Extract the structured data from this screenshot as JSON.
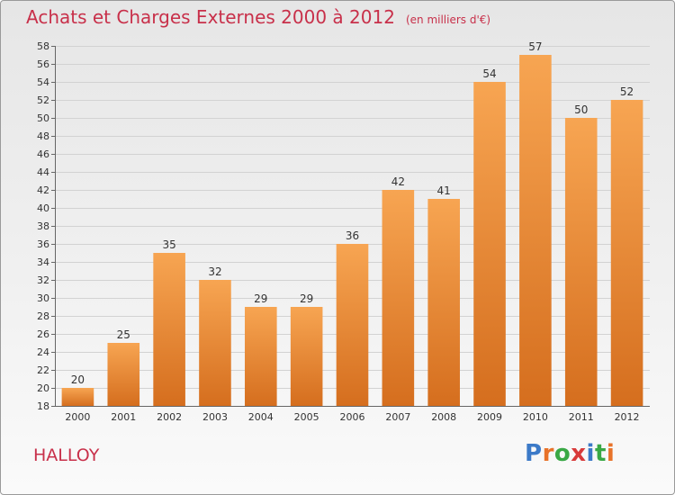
{
  "title": "Achats et Charges Externes 2000 à 2012",
  "unit": "(en milliers d'€)",
  "commune": "HALLOY",
  "logo": {
    "letters": [
      "P",
      "r",
      "o",
      "x",
      "i",
      "t",
      "i"
    ],
    "colors": [
      "#3c7ac8",
      "#e8732a",
      "#39a845",
      "#d83a3a",
      "#3c7ac8",
      "#39a845",
      "#e8732a"
    ]
  },
  "colors": {
    "bar_top": "#f7a552",
    "bar_bottom": "#d56e1e",
    "title": "#c8304a"
  },
  "chart_data": {
    "type": "bar",
    "categories": [
      "2000",
      "2001",
      "2002",
      "2003",
      "2004",
      "2005",
      "2006",
      "2007",
      "2008",
      "2009",
      "2010",
      "2011",
      "2012"
    ],
    "values": [
      20,
      25,
      35,
      32,
      29,
      29,
      36,
      42,
      41,
      54,
      57,
      50,
      52
    ],
    "data_labels": [
      "20",
      "25",
      "35",
      "32",
      "29",
      "29",
      "36",
      "42",
      "41",
      "54",
      "57",
      "50",
      "52"
    ],
    "ylim": [
      18,
      58
    ],
    "yticks": [
      18,
      20,
      22,
      24,
      26,
      28,
      30,
      32,
      34,
      36,
      38,
      40,
      42,
      44,
      46,
      48,
      50,
      52,
      54,
      56,
      58
    ],
    "grid": true
  }
}
